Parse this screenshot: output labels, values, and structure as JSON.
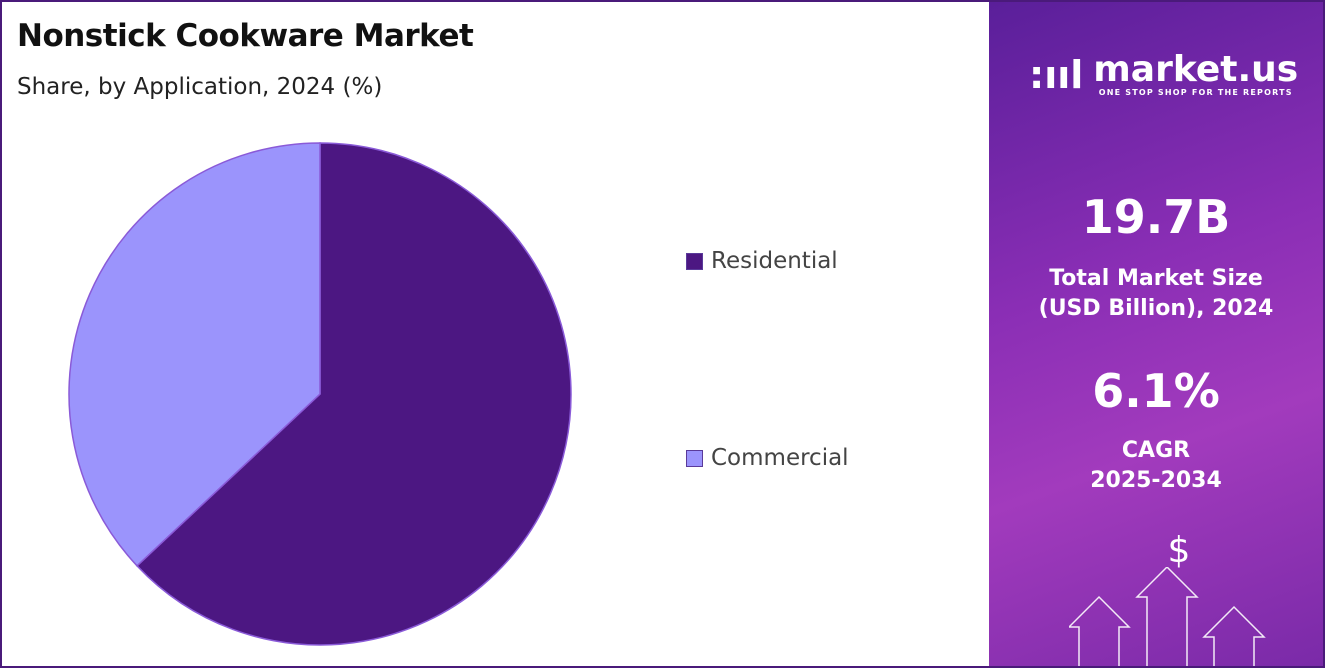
{
  "header": {
    "title": "Nonstick Cookware Market",
    "subtitle": "Share, by Application, 2024 (%)"
  },
  "chart_data": {
    "type": "pie",
    "title": "Nonstick Cookware Market",
    "subtitle": "Share, by Application, 2024 (%)",
    "categories": [
      "Residential",
      "Commercial"
    ],
    "values": [
      63,
      37
    ],
    "colors": [
      "#4c1782",
      "#9b94fc"
    ],
    "legend_placement": "right"
  },
  "panel": {
    "logo_name": "market.us",
    "logo_tagline": "ONE STOP SHOP FOR THE REPORTS",
    "market_size_value": "19.7B",
    "market_size_label_1": "Total Market Size",
    "market_size_label_2": "(USD Billion), 2024",
    "cagr_value": "6.1%",
    "cagr_label_1": "CAGR",
    "cagr_label_2": "2025-2034",
    "dollar_symbol": "$"
  }
}
